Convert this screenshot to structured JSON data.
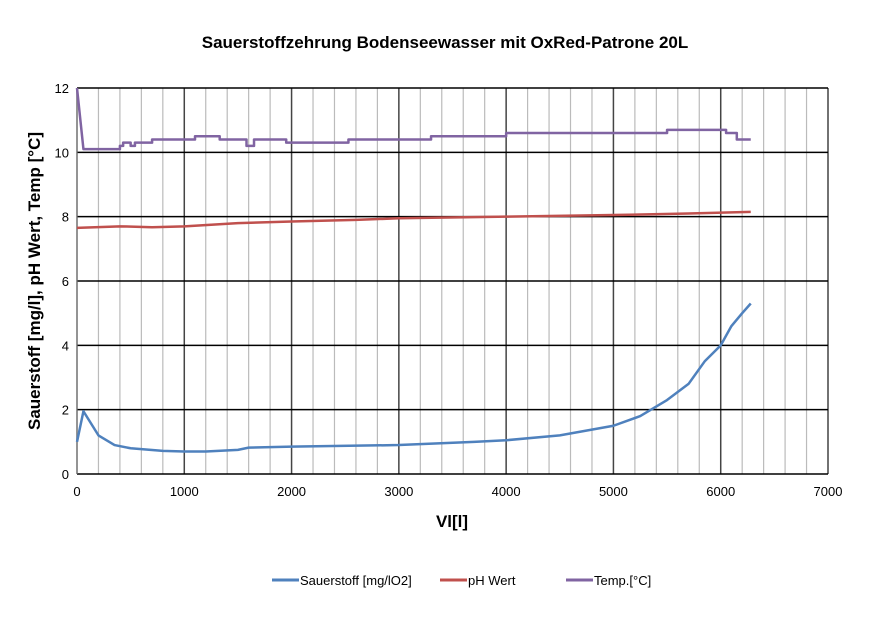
{
  "chart_data": {
    "type": "line",
    "title": "Sauerstoffzehrung Bodenseewasser mit OxRed-Patrone 20L",
    "xlabel": "Vl[l]",
    "ylabel": "Sauerstoff [mg/l], pH Wert, Temp [°C]",
    "xlim": [
      0,
      7000
    ],
    "ylim": [
      0,
      12
    ],
    "xticks": [
      0,
      1000,
      2000,
      3000,
      4000,
      5000,
      6000,
      7000
    ],
    "yticks": [
      0,
      2,
      4,
      6,
      8,
      10,
      12
    ],
    "grid": {
      "x_major": 1000,
      "x_minor": 200,
      "y_major": 2
    },
    "legend_position": "bottom",
    "series": [
      {
        "name": "Sauerstoff [mg/lO2]",
        "color": "#4f81bd",
        "x": [
          0,
          60,
          200,
          350,
          500,
          800,
          1000,
          1200,
          1500,
          1600,
          2000,
          3000,
          3700,
          4000,
          4500,
          5000,
          5250,
          5500,
          5700,
          5850,
          6000,
          6100,
          6200,
          6280
        ],
        "y": [
          1.0,
          1.95,
          1.2,
          0.9,
          0.8,
          0.72,
          0.7,
          0.7,
          0.75,
          0.82,
          0.85,
          0.9,
          1.0,
          1.05,
          1.2,
          1.5,
          1.8,
          2.3,
          2.8,
          3.5,
          4.0,
          4.6,
          5.0,
          5.3
        ]
      },
      {
        "name": "pH Wert",
        "color": "#c0504d",
        "x": [
          0,
          400,
          700,
          1000,
          1500,
          2000,
          2600,
          3000,
          4000,
          5000,
          5700,
          6280
        ],
        "y": [
          7.65,
          7.7,
          7.67,
          7.7,
          7.8,
          7.85,
          7.9,
          7.95,
          8.0,
          8.05,
          8.1,
          8.15
        ]
      },
      {
        "name": "Temp.[°C]",
        "color": "#8064a2",
        "x": [
          0,
          60,
          400,
          430,
          500,
          540,
          620,
          700,
          1000,
          1100,
          1330,
          1540,
          1580,
          1650,
          1950,
          2530,
          3300,
          4000,
          5500,
          6050,
          6150,
          6280
        ],
        "y": [
          12,
          10.1,
          10.2,
          10.3,
          10.2,
          10.3,
          10.3,
          10.4,
          10.4,
          10.5,
          10.4,
          10.4,
          10.2,
          10.4,
          10.3,
          10.4,
          10.5,
          10.6,
          10.7,
          10.6,
          10.4,
          10.4
        ],
        "step": true
      }
    ]
  }
}
